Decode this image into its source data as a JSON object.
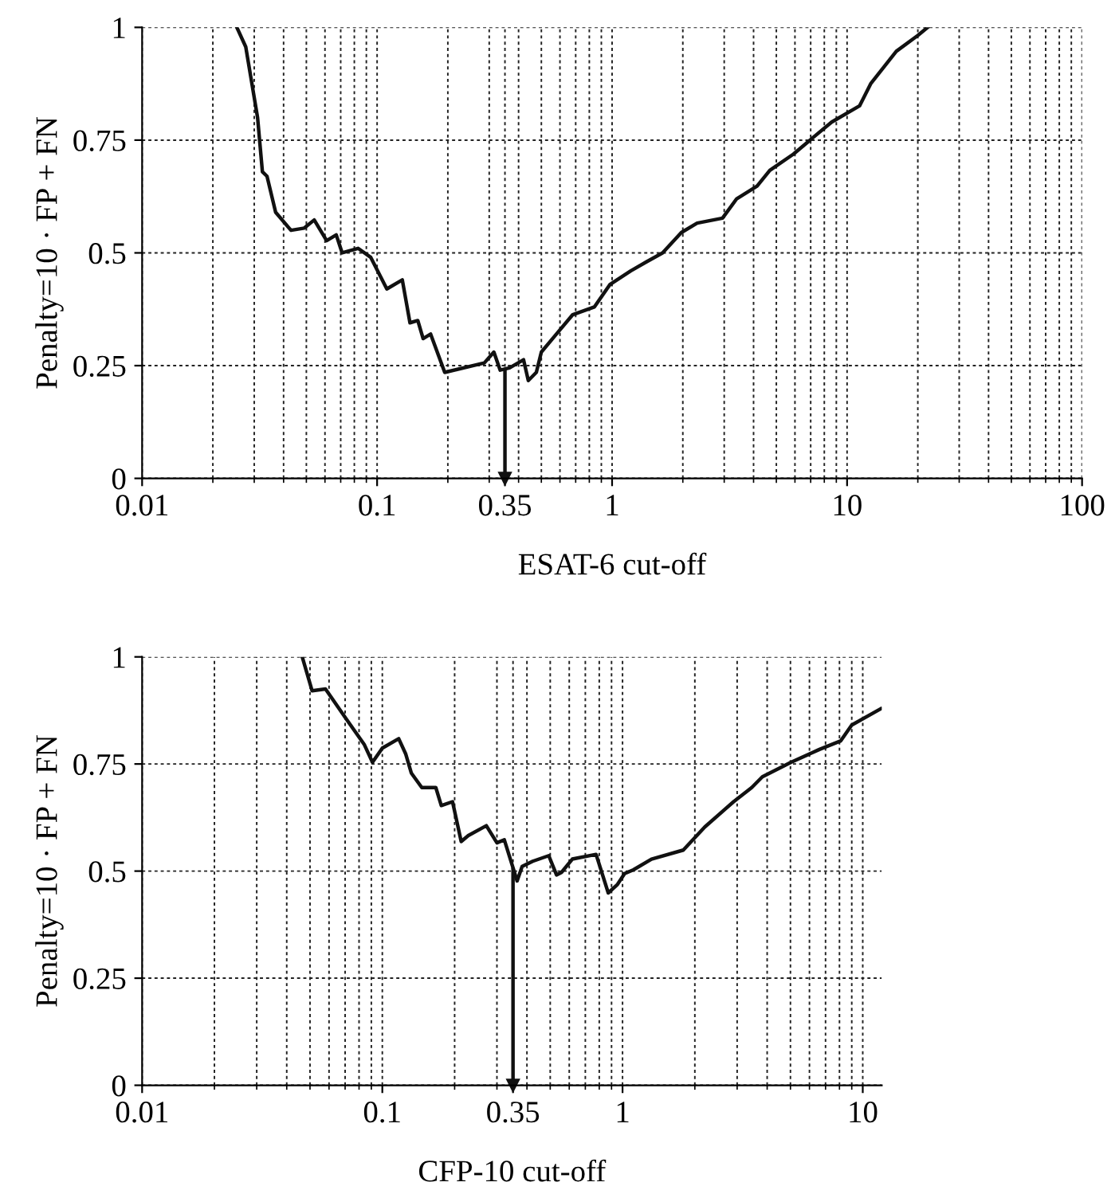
{
  "chart_data": [
    {
      "type": "line",
      "xlabel": "ESAT-6 cut-off",
      "ylabel": "Penalty=10 · FP + FN",
      "log": "x",
      "grid": true,
      "line_style": "solid",
      "marker": "none",
      "xlim": [
        0.01,
        100
      ],
      "xticks": [
        0.01,
        0.1,
        0.35,
        1,
        10,
        100
      ],
      "ylim": [
        0,
        1
      ],
      "yticks": [
        0,
        0.25,
        0.5,
        0.75,
        1
      ],
      "series": [
        {
          "color": "#111111",
          "x": [
            0.0253,
            0.0276,
            0.031,
            0.0325,
            0.034,
            0.037,
            0.043,
            0.049,
            0.054,
            0.061,
            0.067,
            0.071,
            0.083,
            0.094,
            0.11,
            0.128,
            0.138,
            0.149,
            0.157,
            0.169,
            0.194,
            0.286,
            0.314,
            0.334,
            0.366,
            0.42,
            0.44,
            0.476,
            0.5,
            0.573,
            0.68,
            0.84,
            0.98,
            1.2,
            1.4,
            1.64,
            1.97,
            2.3,
            2.95,
            3.39,
            4.14,
            4.69,
            5.91,
            7.1,
            8.6,
            11.3,
            12.6,
            16.2,
            20.0,
            22.0
          ],
          "values": [
            1.0,
            0.957,
            0.8,
            0.68,
            0.67,
            0.59,
            0.55,
            0.555,
            0.573,
            0.527,
            0.54,
            0.5,
            0.51,
            0.49,
            0.42,
            0.44,
            0.345,
            0.35,
            0.31,
            0.32,
            0.235,
            0.256,
            0.28,
            0.24,
            0.245,
            0.263,
            0.217,
            0.235,
            0.28,
            0.317,
            0.363,
            0.38,
            0.43,
            0.46,
            0.48,
            0.5,
            0.545,
            0.566,
            0.577,
            0.62,
            0.648,
            0.683,
            0.719,
            0.754,
            0.79,
            0.826,
            0.875,
            0.947,
            0.982,
            1.0
          ]
        }
      ],
      "ref_lines": [
        {
          "axis": "x",
          "value": 0.35,
          "color": "#111111"
        }
      ]
    },
    {
      "type": "line",
      "xlabel": "CFP-10 cut-off",
      "ylabel": "Penalty=10 · FP + FN",
      "log": "x",
      "grid": true,
      "line_style": "solid",
      "marker": "none",
      "xlim": [
        0.01,
        12
      ],
      "xticks": [
        0.01,
        0.1,
        0.35,
        1,
        10
      ],
      "ylim": [
        0,
        1
      ],
      "yticks": [
        0,
        0.25,
        0.5,
        0.75,
        1
      ],
      "series": [
        {
          "color": "#111111",
          "x": [
            0.0464,
            0.051,
            0.058,
            0.071,
            0.084,
            0.091,
            0.1,
            0.117,
            0.125,
            0.132,
            0.146,
            0.167,
            0.176,
            0.196,
            0.213,
            0.228,
            0.271,
            0.3,
            0.322,
            0.364,
            0.382,
            0.423,
            0.493,
            0.531,
            0.557,
            0.618,
            0.776,
            0.872,
            0.953,
            1.02,
            1.11,
            1.32,
            1.79,
            2.2,
            2.9,
            3.45,
            3.82,
            5.03,
            6.6,
            8.1,
            9.0,
            11.9
          ],
          "values": [
            1.0,
            0.921,
            0.925,
            0.854,
            0.796,
            0.754,
            0.787,
            0.809,
            0.774,
            0.729,
            0.695,
            0.695,
            0.653,
            0.662,
            0.569,
            0.583,
            0.606,
            0.566,
            0.573,
            0.477,
            0.511,
            0.523,
            0.536,
            0.491,
            0.497,
            0.528,
            0.539,
            0.449,
            0.469,
            0.494,
            0.503,
            0.528,
            0.549,
            0.603,
            0.662,
            0.695,
            0.72,
            0.754,
            0.784,
            0.804,
            0.841,
            0.879
          ]
        }
      ],
      "ref_lines": [
        {
          "axis": "x",
          "value": 0.35,
          "color": "#111111"
        }
      ]
    }
  ]
}
